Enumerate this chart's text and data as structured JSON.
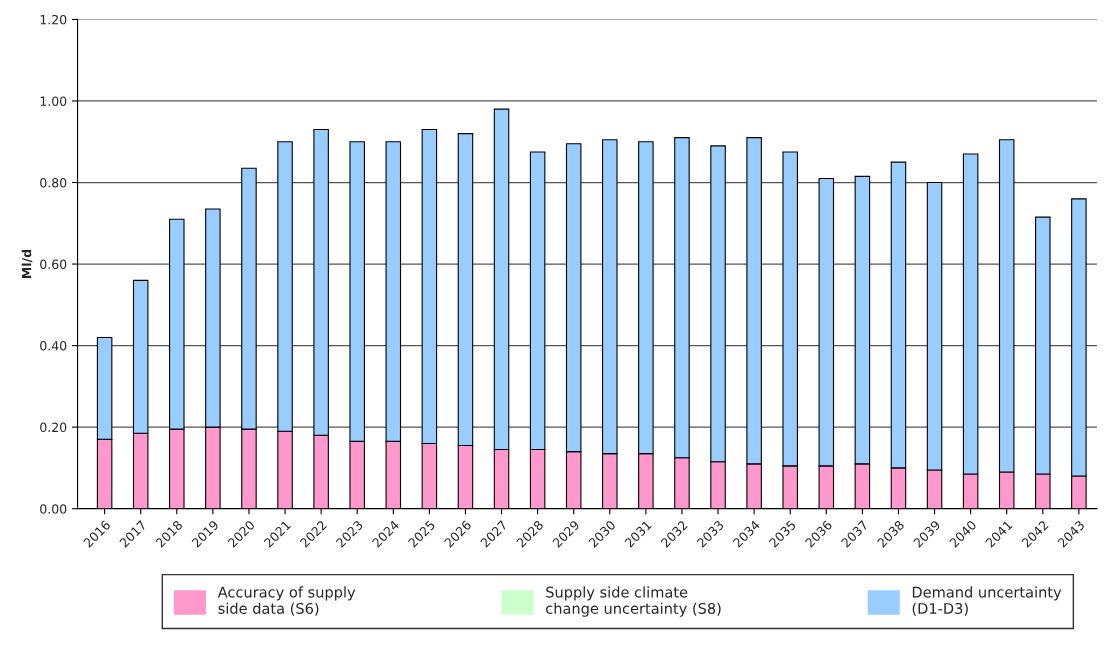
{
  "chart_data": {
    "type": "bar",
    "stacked": true,
    "ylabel": "Ml/d",
    "categories": [
      "2016",
      "2017",
      "2018",
      "2019",
      "2020",
      "2021",
      "2022",
      "2023",
      "2024",
      "2025",
      "2026",
      "2027",
      "2028",
      "2029",
      "2030",
      "2031",
      "2032",
      "2033",
      "2034",
      "2035",
      "2036",
      "2037",
      "2038",
      "2039",
      "2040",
      "2041",
      "2042",
      "2043"
    ],
    "series": [
      {
        "name": "Accuracy of supply\nside data (S6)",
        "color": "#ff99cc",
        "values": [
          0.17,
          0.185,
          0.195,
          0.2,
          0.195,
          0.19,
          0.18,
          0.165,
          0.165,
          0.16,
          0.155,
          0.145,
          0.145,
          0.14,
          0.135,
          0.135,
          0.125,
          0.115,
          0.11,
          0.105,
          0.105,
          0.11,
          0.1,
          0.095,
          0.085,
          0.09,
          0.085,
          0.08
        ]
      },
      {
        "name": "Supply side climate\nchange uncertainty (S8)",
        "color": "#ccffcc",
        "values": [
          null,
          null,
          null,
          null,
          null,
          null,
          null,
          null,
          null,
          null,
          null,
          null,
          null,
          null,
          null,
          null,
          null,
          null,
          null,
          null,
          null,
          null,
          null,
          null,
          null,
          null,
          null,
          null
        ]
      },
      {
        "name": "Demand uncertainty\n(D1-D3)",
        "color": "#99ccff",
        "values": [
          0.25,
          0.375,
          0.515,
          0.535,
          0.64,
          0.71,
          0.75,
          0.735,
          0.735,
          0.77,
          0.765,
          0.835,
          0.73,
          0.755,
          0.77,
          0.765,
          0.785,
          0.775,
          0.8,
          0.77,
          0.705,
          0.705,
          0.75,
          0.705,
          0.785,
          0.815,
          0.63,
          0.68
        ]
      }
    ],
    "ylim": [
      0,
      1.2
    ],
    "yticks": [
      {
        "value": 0,
        "label": "0.00"
      },
      {
        "value": 0.2,
        "label": "0.20"
      },
      {
        "value": 0.4,
        "label": "0.40"
      },
      {
        "value": 0.6,
        "label": "0.60"
      },
      {
        "value": 0.8,
        "label": "0.80"
      },
      {
        "value": 1.0,
        "label": "1.00"
      },
      {
        "value": 1.2,
        "label": "1.20"
      }
    ],
    "grid": "y",
    "legend": "bottom"
  }
}
